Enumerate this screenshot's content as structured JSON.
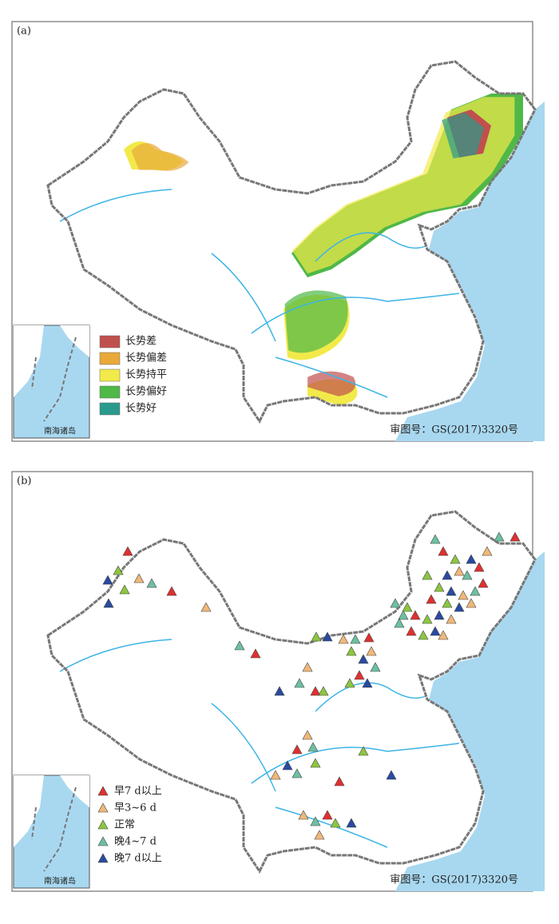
{
  "panels": [
    {
      "label": "(a)",
      "legend": [
        {
          "text": "长势差",
          "color": "#c0504d"
        },
        {
          "text": "长势偏差",
          "color": "#e8a93a"
        },
        {
          "text": "长势持平",
          "color": "#f2ea4a"
        },
        {
          "text": "长势偏好",
          "color": "#4fb847"
        },
        {
          "text": "长势好",
          "color": "#2a9a8c"
        }
      ],
      "inset_label": "南海诸岛",
      "approval": "审图号：GS(2017)3320号"
    },
    {
      "label": "(b)",
      "legend": [
        {
          "text": "早7 d以上",
          "color": "#e03030"
        },
        {
          "text": "早3~6 d",
          "color": "#f0b878"
        },
        {
          "text": "正常",
          "color": "#8cc63f"
        },
        {
          "text": "晚4~7 d",
          "color": "#6cc0a0"
        },
        {
          "text": "晚7 d以上",
          "color": "#2a4aa0"
        }
      ],
      "inset_label": "南海诸岛",
      "approval": "审图号：GS(2017)3320号"
    }
  ]
}
